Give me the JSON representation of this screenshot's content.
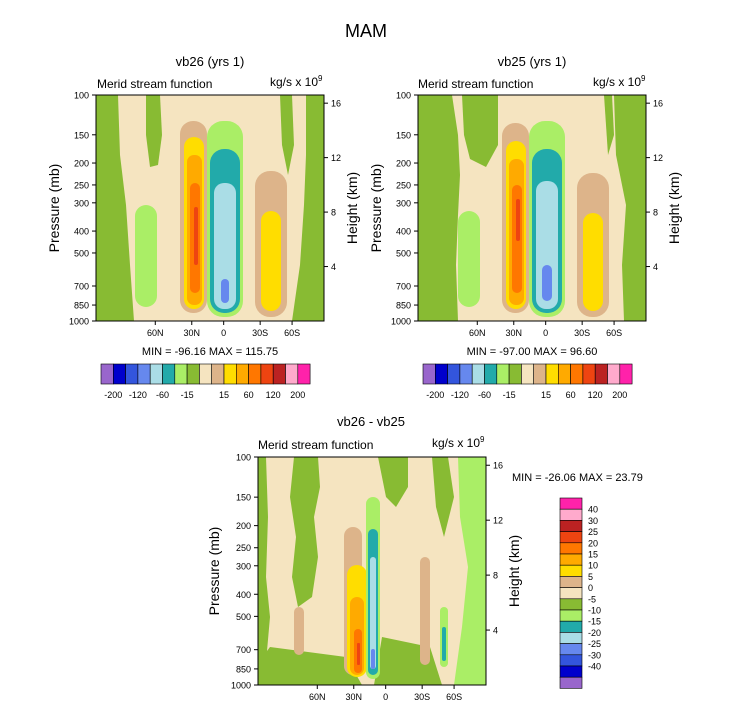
{
  "title": "MAM",
  "colors": {
    "neg40": "#9966cc",
    "neg30": "#0000cc",
    "neg25": "#3355dd",
    "neg20": "#6688ee",
    "neg15": "#aadde6",
    "neg10": "#22aaaa",
    "neg5": "#aaee66",
    "zero": "#88bb33",
    "pos5": "#f5e4c0",
    "pos10": "#ddb48a",
    "pos15": "#ffdd00",
    "pos20": "#ffaa00",
    "pos25": "#ff7700",
    "pos30": "#ee4411",
    "pos35": "#bb2222",
    "pos40": "#ffaacc",
    "pos45": "#ff22aa"
  },
  "chart_data": [
    {
      "type": "contour",
      "name": "vb26",
      "title": "vb26 (yrs 1)",
      "left_title": "Merid stream function",
      "units": "kg/s x 10",
      "units_exp": "9",
      "ylabel": "Pressure (mb)",
      "ylabel_right": "Height (km)",
      "y_ticks": [
        "100",
        "150",
        "200",
        "250",
        "300",
        "400",
        "500",
        "700",
        "850",
        "1000"
      ],
      "y_right_ticks": [
        "16",
        "12",
        "8",
        "4"
      ],
      "x_ticks": [
        "60N",
        "30N",
        "0",
        "30S",
        "60S"
      ],
      "min_max": "MIN = -96.16   MAX = 115.75",
      "min": -96.16,
      "max": 115.75
    },
    {
      "type": "contour",
      "name": "vb25",
      "title": "vb25 (yrs 1)",
      "left_title": "Merid stream function",
      "units": "kg/s x 10",
      "units_exp": "9",
      "ylabel": "Pressure (mb)",
      "ylabel_right": "Height (km)",
      "y_ticks": [
        "100",
        "150",
        "200",
        "250",
        "300",
        "400",
        "500",
        "700",
        "850",
        "1000"
      ],
      "y_right_ticks": [
        "16",
        "12",
        "8",
        "4"
      ],
      "x_ticks": [
        "60N",
        "30N",
        "0",
        "30S",
        "60S"
      ],
      "min_max": "MIN = -97.00   MAX =  96.60",
      "min": -97.0,
      "max": 96.6
    },
    {
      "type": "contour",
      "name": "diff",
      "title": "vb26 - vb25",
      "left_title": "Merid stream function",
      "units": "kg/s x 10",
      "units_exp": "9",
      "ylabel": "Pressure (mb)",
      "ylabel_right": "Height (km)",
      "y_ticks": [
        "100",
        "150",
        "200",
        "250",
        "300",
        "400",
        "500",
        "700",
        "850",
        "1000"
      ],
      "y_right_ticks": [
        "16",
        "12",
        "8",
        "4"
      ],
      "x_ticks": [
        "60N",
        "30N",
        "0",
        "30S",
        "60S"
      ],
      "min_max": "MIN = -26.06   MAX =  23.79",
      "min": -26.06,
      "max": 23.79
    }
  ],
  "legend_top_labels": [
    "-200",
    "-120",
    "-60",
    "-15",
    "15",
    "60",
    "120",
    "200"
  ],
  "legend_diff_labels": [
    "40",
    "30",
    "25",
    "20",
    "15",
    "10",
    "5",
    "0",
    "-5",
    "-10",
    "-15",
    "-20",
    "-25",
    "-30",
    "-40"
  ]
}
